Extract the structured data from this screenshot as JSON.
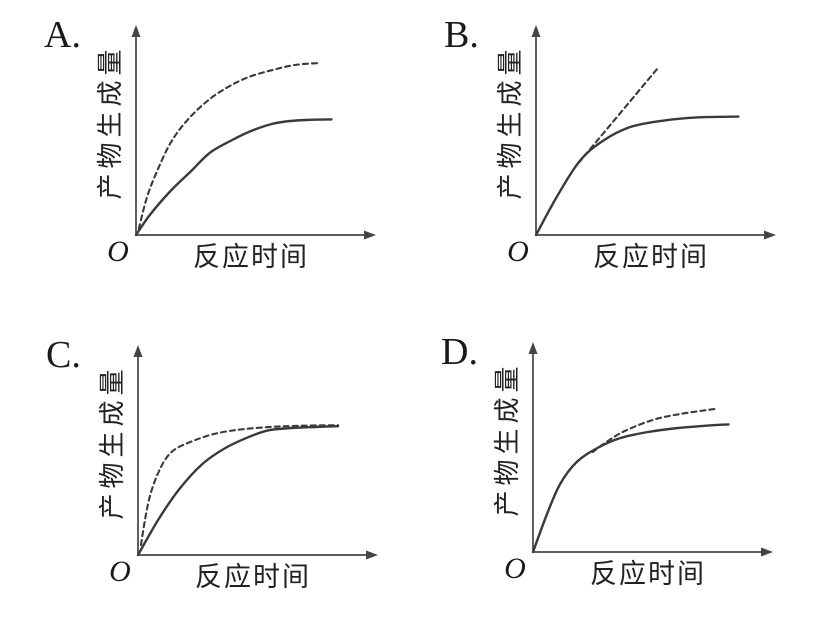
{
  "colors": {
    "background": "#ffffff",
    "curve": "#3a3a3a",
    "axis": "#444444",
    "text": "#1a1a1a"
  },
  "chart_data": [
    {
      "type": "line",
      "panel_label": "A.",
      "ylabel": "产物生成量",
      "xlabel": "反应时间",
      "origin_label": "O",
      "x_axis": {
        "range": [
          0,
          1
        ],
        "ticks": "none",
        "arrow": true
      },
      "y_axis": {
        "range": [
          0,
          1
        ],
        "ticks": "none",
        "arrow": true
      },
      "grid": false,
      "legend": "none",
      "series": [
        {
          "name": "solid-curve",
          "style": "solid",
          "points": [
            [
              0,
              0
            ],
            [
              0.06,
              0.1
            ],
            [
              0.15,
              0.22
            ],
            [
              0.24,
              0.32
            ],
            [
              0.32,
              0.41
            ],
            [
              0.41,
              0.47
            ],
            [
              0.5,
              0.52
            ],
            [
              0.59,
              0.555
            ],
            [
              0.67,
              0.57
            ],
            [
              0.76,
              0.576
            ],
            [
              0.85,
              0.578
            ]
          ]
        },
        {
          "name": "dashed-curve",
          "style": "dashed",
          "points": [
            [
              0.012,
              0.03
            ],
            [
              0.048,
              0.19
            ],
            [
              0.092,
              0.32
            ],
            [
              0.15,
              0.46
            ],
            [
              0.22,
              0.57
            ],
            [
              0.31,
              0.67
            ],
            [
              0.4,
              0.74
            ],
            [
              0.49,
              0.79
            ],
            [
              0.59,
              0.824
            ],
            [
              0.69,
              0.85
            ],
            [
              0.8,
              0.86
            ]
          ]
        }
      ]
    },
    {
      "type": "line",
      "panel_label": "B.",
      "ylabel": "产物生成量",
      "xlabel": "反应时间",
      "origin_label": "O",
      "x_axis": {
        "range": [
          0,
          1
        ],
        "ticks": "none",
        "arrow": true
      },
      "y_axis": {
        "range": [
          0,
          1
        ],
        "ticks": "none",
        "arrow": true
      },
      "grid": false,
      "legend": "none",
      "series": [
        {
          "name": "solid-curve",
          "style": "solid",
          "points": [
            [
              0,
              0
            ],
            [
              0.09,
              0.19
            ],
            [
              0.19,
              0.37
            ],
            [
              0.29,
              0.47
            ],
            [
              0.41,
              0.54
            ],
            [
              0.56,
              0.573
            ],
            [
              0.7,
              0.588
            ],
            [
              0.88,
              0.592
            ]
          ]
        },
        {
          "name": "dashed-line",
          "style": "dashed",
          "points": [
            [
              0.185,
              0.36
            ],
            [
              0.53,
              0.835
            ]
          ]
        }
      ]
    },
    {
      "type": "line",
      "panel_label": "C.",
      "ylabel": "产物生成量",
      "xlabel": "反应时间",
      "origin_label": "O",
      "x_axis": {
        "range": [
          0,
          1
        ],
        "ticks": "none",
        "arrow": true
      },
      "y_axis": {
        "range": [
          0,
          1
        ],
        "ticks": "none",
        "arrow": true
      },
      "grid": false,
      "legend": "none",
      "series": [
        {
          "name": "solid-curve",
          "style": "solid",
          "points": [
            [
              0,
              0
            ],
            [
              0.09,
              0.18
            ],
            [
              0.18,
              0.33
            ],
            [
              0.28,
              0.455
            ],
            [
              0.38,
              0.535
            ],
            [
              0.49,
              0.594
            ],
            [
              0.57,
              0.624
            ],
            [
              0.66,
              0.634
            ],
            [
              0.77,
              0.64
            ],
            [
              0.87,
              0.644
            ]
          ]
        },
        {
          "name": "dashed-curve",
          "style": "dashed",
          "points": [
            [
              0.013,
              0.05
            ],
            [
              0.031,
              0.18
            ],
            [
              0.053,
              0.3
            ],
            [
              0.084,
              0.4
            ],
            [
              0.12,
              0.48
            ],
            [
              0.163,
              0.53
            ],
            [
              0.238,
              0.57
            ],
            [
              0.326,
              0.604
            ],
            [
              0.427,
              0.625
            ],
            [
              0.56,
              0.639
            ],
            [
              0.7,
              0.646
            ],
            [
              0.87,
              0.649
            ]
          ]
        }
      ]
    },
    {
      "type": "line",
      "panel_label": "D.",
      "ylabel": "产物生成量",
      "xlabel": "反应时间",
      "origin_label": "O",
      "x_axis": {
        "range": [
          0,
          1
        ],
        "ticks": "none",
        "arrow": true
      },
      "y_axis": {
        "range": [
          0,
          1
        ],
        "ticks": "none",
        "arrow": true
      },
      "grid": false,
      "legend": "none",
      "series": [
        {
          "name": "solid-curve",
          "style": "solid",
          "points": [
            [
              0,
              0
            ],
            [
              0.061,
              0.19
            ],
            [
              0.118,
              0.34
            ],
            [
              0.19,
              0.45
            ],
            [
              0.28,
              0.52
            ],
            [
              0.38,
              0.57
            ],
            [
              0.5,
              0.6
            ],
            [
              0.63,
              0.62
            ],
            [
              0.76,
              0.632
            ],
            [
              0.85,
              0.638
            ]
          ]
        },
        {
          "name": "dashed-curve",
          "style": "dashed",
          "points": [
            [
              0.26,
              0.5
            ],
            [
              0.3,
              0.535
            ],
            [
              0.39,
              0.6
            ],
            [
              0.52,
              0.66
            ],
            [
              0.64,
              0.69
            ],
            [
              0.79,
              0.715
            ]
          ]
        }
      ]
    }
  ]
}
